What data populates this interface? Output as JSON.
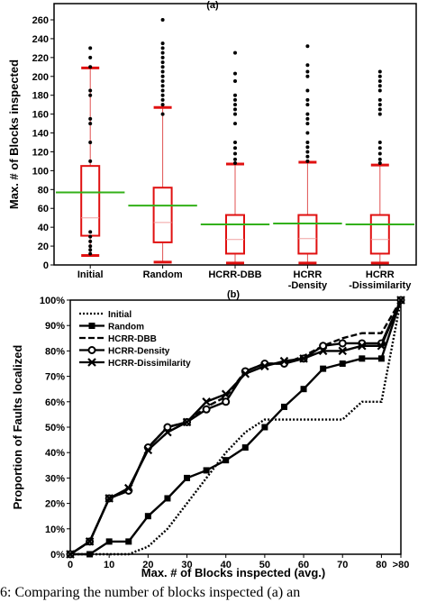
{
  "chart_data": [
    {
      "type": "box",
      "panel_label": "(a)",
      "ylabel": "Max. # of Blocks inspected",
      "xlabel": "",
      "ylim": [
        0,
        260
      ],
      "yticks": [
        0,
        20,
        40,
        60,
        80,
        100,
        120,
        140,
        160,
        180,
        200,
        220,
        240,
        260
      ],
      "categories": [
        "Initial",
        "Random",
        "HCRR-DBB",
        "HCRR\n-Density",
        "HCRR\n-Dissimilarity"
      ],
      "boxes": [
        {
          "min": 10,
          "q1": 31,
          "median": 50,
          "q3": 105,
          "max": 209,
          "mean": 77,
          "outliers": [
            12,
            16,
            20,
            25,
            30,
            35,
            110,
            130,
            150,
            155,
            180,
            185,
            210,
            220,
            230
          ]
        },
        {
          "min": 3,
          "q1": 24,
          "median": 45,
          "q3": 82,
          "max": 167,
          "mean": 63,
          "outliers": [
            160,
            170,
            175,
            180,
            185,
            190,
            195,
            200,
            205,
            210,
            215,
            220,
            225,
            230,
            235,
            260
          ]
        },
        {
          "min": 2,
          "q1": 12,
          "median": 27,
          "q3": 53,
          "max": 107,
          "mean": 43,
          "outliers": [
            108,
            112,
            118,
            124,
            130,
            150,
            160,
            165,
            170,
            175,
            180,
            195,
            203,
            225
          ]
        },
        {
          "min": 2,
          "q1": 12,
          "median": 28,
          "q3": 53,
          "max": 109,
          "mean": 44,
          "outliers": [
            110,
            115,
            120,
            125,
            130,
            140,
            150,
            155,
            160,
            170,
            175,
            185,
            200,
            205,
            212,
            232
          ]
        },
        {
          "min": 2,
          "q1": 12,
          "median": 27,
          "q3": 53,
          "max": 106,
          "mean": 43,
          "outliers": [
            108,
            112,
            118,
            124,
            130,
            160,
            165,
            170,
            175,
            185,
            190,
            195,
            200,
            205
          ]
        }
      ]
    },
    {
      "type": "line",
      "panel_label": "(b)",
      "ylabel": "Proportion of Faults localized",
      "xlabel": "Max. # of Blocks inspected (avg.)",
      "x": [
        0,
        5,
        10,
        15,
        20,
        25,
        30,
        35,
        40,
        45,
        50,
        55,
        60,
        65,
        70,
        75,
        80,
        ">80"
      ],
      "xtick_labels": [
        "0",
        "10",
        "20",
        "30",
        "40",
        "50",
        "60",
        "70",
        "80",
        ">80"
      ],
      "ylim": [
        0,
        100
      ],
      "ytick_labels": [
        "0%",
        "10%",
        "20%",
        "30%",
        "40%",
        "50%",
        "60%",
        "70%",
        "80%",
        "90%",
        "100%"
      ],
      "legend_position": "top-left",
      "series": [
        {
          "name": "Initial",
          "style": "dotted",
          "marker": "none",
          "values": [
            0,
            0,
            0,
            0,
            3,
            10,
            20,
            30,
            40,
            48,
            53,
            53,
            53,
            53,
            53,
            60,
            60,
            100
          ]
        },
        {
          "name": "Random",
          "style": "solid",
          "marker": "square",
          "values": [
            0,
            0,
            5,
            5,
            15,
            22,
            30,
            33,
            37,
            42,
            50,
            58,
            65,
            73,
            75,
            77,
            77,
            100
          ]
        },
        {
          "name": "HCRR-DBB",
          "style": "dashed",
          "marker": "none",
          "values": [
            0,
            5,
            22,
            25,
            42,
            50,
            52,
            58,
            62,
            72,
            75,
            75,
            78,
            82,
            85,
            87,
            87,
            100
          ]
        },
        {
          "name": "HCRR-Density",
          "style": "solid",
          "marker": "circle",
          "values": [
            0,
            5,
            22,
            25,
            42,
            50,
            52,
            57,
            60,
            72,
            75,
            75,
            77,
            82,
            83,
            83,
            83,
            100
          ]
        },
        {
          "name": "HCRR-Dissimilarity",
          "style": "solid",
          "marker": "x",
          "values": [
            0,
            5,
            22,
            26,
            41,
            48,
            52,
            60,
            63,
            71,
            74,
            76,
            77,
            80,
            80,
            82,
            82,
            100
          ]
        }
      ]
    }
  ],
  "caption": "6: Comparing the number of blocks inspected (a) an"
}
